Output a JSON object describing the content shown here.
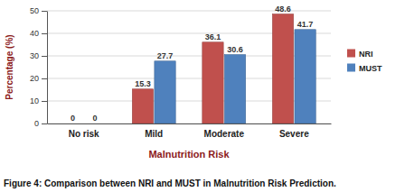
{
  "chart_data": {
    "type": "bar",
    "title": "Figure 4: Comparison between NRI and MUST in Malnutrition Risk Prediction.",
    "x_label": "Malnutrition Risk",
    "y_label": "Percentage (%)",
    "categories": [
      "No risk",
      "Mild",
      "Moderate",
      "Severe"
    ],
    "series": [
      {
        "name": "NRI",
        "color": "#c0504d",
        "values": [
          0,
          15.3,
          36.1,
          48.6
        ]
      },
      {
        "name": "MUST",
        "color": "#4f81bd",
        "values": [
          0,
          27.7,
          30.6,
          41.7
        ]
      }
    ],
    "ylim": [
      0,
      50
    ],
    "yticks": [
      0,
      10,
      20,
      30,
      40,
      50
    ],
    "grid": true,
    "legend": "right",
    "data_labels": true
  }
}
